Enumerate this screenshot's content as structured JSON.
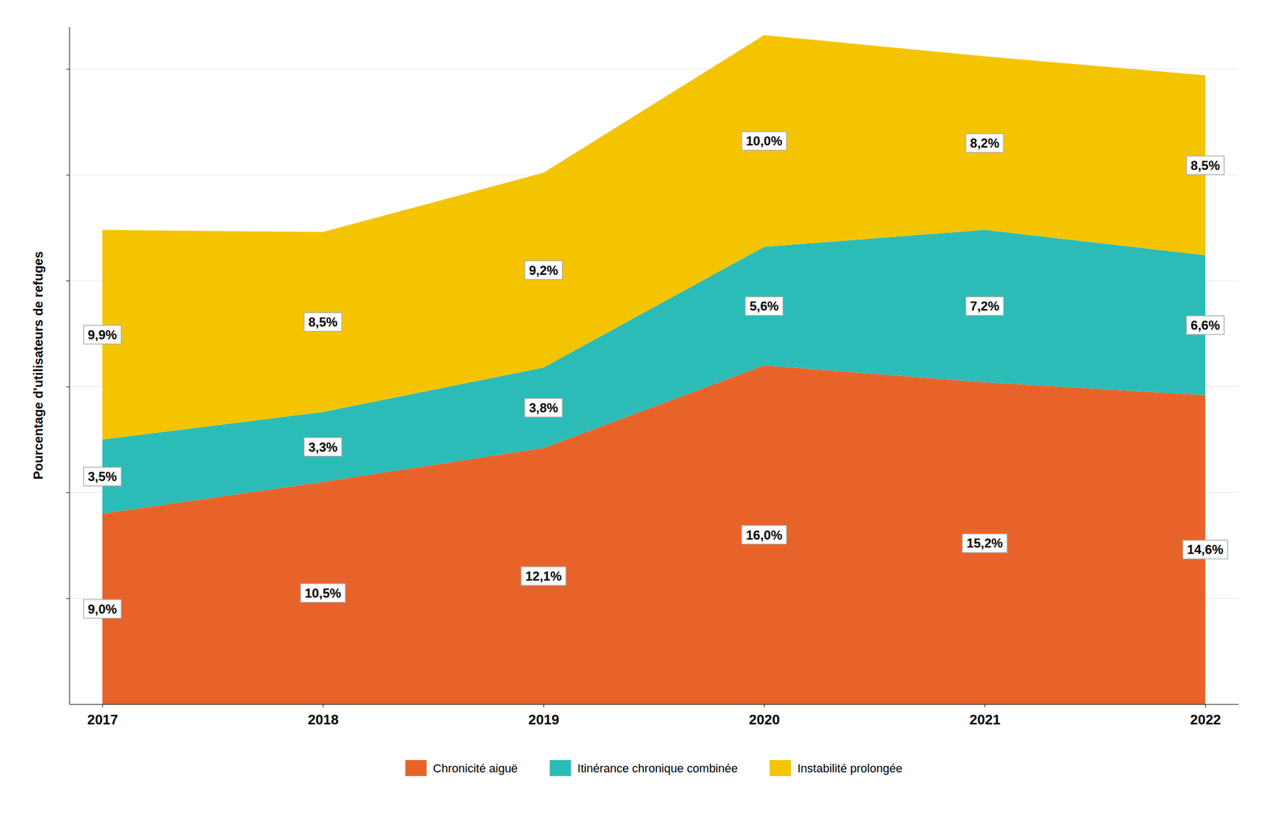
{
  "chart_data": {
    "type": "area",
    "stacked": true,
    "ylabel": "Pourcentage d'utilisateurs de refuges",
    "x": [
      2017,
      2018,
      2019,
      2020,
      2021,
      2022
    ],
    "xlim": [
      2016.85,
      2022.15
    ],
    "xticks": [
      2017,
      2018,
      2019,
      2020,
      2021,
      2022
    ],
    "ylim": [
      0,
      32
    ],
    "yticks": [
      5,
      10,
      15,
      20,
      25,
      30
    ],
    "grid": true,
    "tick_labels": "x",
    "legend": "bottom",
    "data_labels": true,
    "series": [
      {
        "name": "Chronicité aiguë",
        "color": "#E8632A",
        "values": [
          9.0,
          10.5,
          12.1,
          16.0,
          15.2,
          14.6
        ],
        "value_labels": [
          "9,0%",
          "10,5%",
          "12,1%",
          "16,0%",
          "15,2%",
          "14,6%"
        ]
      },
      {
        "name": "Itinérance chronique combinée",
        "color": "#2BBCB8",
        "values": [
          3.5,
          3.3,
          3.8,
          5.6,
          7.2,
          6.6
        ],
        "value_labels": [
          "3,5%",
          "3,3%",
          "3,8%",
          "5,6%",
          "7,2%",
          "6,6%"
        ]
      },
      {
        "name": "Instabilité prolongée",
        "color": "#F5C400",
        "values": [
          9.9,
          8.5,
          9.2,
          10.0,
          8.2,
          8.5
        ],
        "value_labels": [
          "9,9%",
          "8,5%",
          "9,2%",
          "10,0%",
          "8,2%",
          "8,5%"
        ]
      }
    ]
  }
}
